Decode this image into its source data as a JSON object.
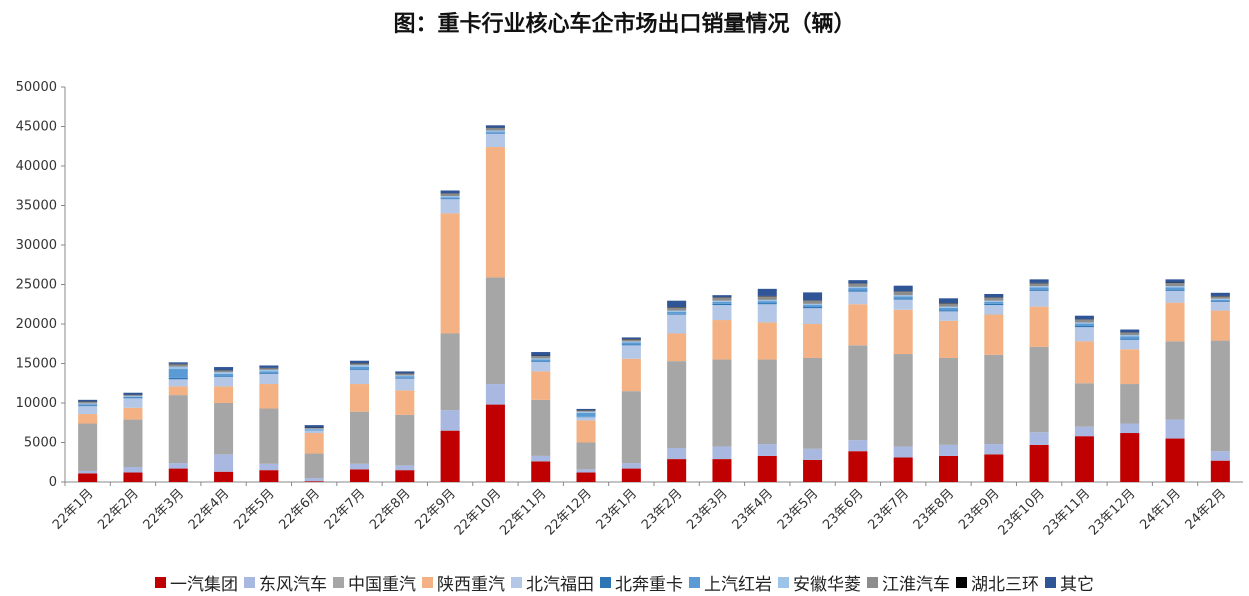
{
  "title": "图：重卡行业核心车企市场出口销量情况（辆）",
  "chart_data": {
    "type": "bar",
    "stacked": true,
    "title": "图：重卡行业核心车企市场出口销量情况（辆）",
    "ylim": [
      0,
      50000
    ],
    "yticks": [
      "0",
      "5000",
      "10000",
      "15000",
      "20000",
      "25000",
      "30000",
      "35000",
      "40000",
      "45000",
      "50000"
    ],
    "categories": [
      "22年1月",
      "22年2月",
      "22年3月",
      "22年4月",
      "22年5月",
      "22年6月",
      "22年7月",
      "22年8月",
      "22年9月",
      "22年10月",
      "22年11月",
      "22年12月",
      "23年1月",
      "23年2月",
      "23年3月",
      "23年4月",
      "23年5月",
      "23年6月",
      "23年7月",
      "23年8月",
      "23年9月",
      "23年10月",
      "23年11月",
      "23年12月",
      "24年1月",
      "24年2月"
    ],
    "legend_position": "bottom",
    "series": [
      {
        "name": "一汽集团",
        "color": "#C00000",
        "values": [
          1100,
          1200,
          1700,
          1300,
          1500,
          100,
          1600,
          1500,
          6500,
          9800,
          2600,
          1200,
          1700,
          2900,
          2900,
          3300,
          2800,
          3900,
          3100,
          3300,
          3500,
          4700,
          5800,
          6200,
          5500,
          2700
        ]
      },
      {
        "name": "东风汽车",
        "color": "#A9B8E0",
        "values": [
          300,
          700,
          700,
          2200,
          800,
          400,
          700,
          600,
          2600,
          2600,
          700,
          400,
          700,
          1400,
          1600,
          1500,
          1400,
          1400,
          1400,
          1400,
          1300,
          1600,
          1200,
          1200,
          2400,
          1200
        ]
      },
      {
        "name": "中国重汽",
        "color": "#A6A6A6",
        "values": [
          6000,
          6000,
          8600,
          6500,
          7000,
          3100,
          6600,
          6400,
          9700,
          13500,
          7100,
          3400,
          9100,
          11000,
          11000,
          10700,
          11500,
          12000,
          11700,
          11000,
          11300,
          10800,
          5500,
          5000,
          9900,
          14000
        ]
      },
      {
        "name": "陕西重汽",
        "color": "#F4B183",
        "values": [
          1200,
          1500,
          1100,
          2100,
          3100,
          2600,
          3500,
          3100,
          15200,
          16500,
          3600,
          2800,
          4100,
          3500,
          5000,
          4700,
          4300,
          5200,
          5600,
          4700,
          5100,
          5100,
          5300,
          4400,
          4900,
          3800
        ]
      },
      {
        "name": "北汽福田",
        "color": "#B4C7E7",
        "values": [
          1000,
          1200,
          900,
          1200,
          1300,
          300,
          1800,
          1500,
          1800,
          1700,
          1200,
          400,
          1700,
          2400,
          1900,
          2300,
          2000,
          1600,
          1300,
          1200,
          1200,
          2000,
          1800,
          1200,
          1500,
          1100
        ]
      },
      {
        "name": "北奔重卡",
        "color": "#2E75B6",
        "values": [
          100,
          100,
          200,
          100,
          100,
          50,
          100,
          100,
          100,
          100,
          100,
          50,
          100,
          100,
          150,
          150,
          150,
          150,
          150,
          150,
          150,
          150,
          150,
          150,
          150,
          100
        ]
      },
      {
        "name": "上汽红岩",
        "color": "#5B9BD5",
        "values": [
          150,
          100,
          1100,
          300,
          200,
          100,
          300,
          200,
          150,
          150,
          200,
          500,
          250,
          250,
          250,
          250,
          250,
          300,
          250,
          300,
          250,
          300,
          300,
          300,
          300,
          150
        ]
      },
      {
        "name": "安徽华菱",
        "color": "#9DC3E6",
        "values": [
          100,
          100,
          300,
          200,
          200,
          100,
          200,
          100,
          150,
          150,
          150,
          150,
          150,
          150,
          150,
          150,
          150,
          150,
          150,
          150,
          150,
          150,
          150,
          150,
          150,
          150
        ]
      },
      {
        "name": "江淮汽车",
        "color": "#8C8C8C",
        "values": [
          200,
          100,
          300,
          200,
          200,
          100,
          200,
          200,
          300,
          300,
          300,
          150,
          250,
          400,
          400,
          450,
          400,
          400,
          450,
          400,
          400,
          350,
          350,
          300,
          400,
          300
        ]
      },
      {
        "name": "湖北三环",
        "color": "#000000",
        "values": [
          50,
          50,
          50,
          50,
          50,
          50,
          50,
          50,
          50,
          50,
          50,
          50,
          50,
          50,
          50,
          50,
          50,
          50,
          50,
          50,
          50,
          50,
          50,
          50,
          50,
          50
        ]
      },
      {
        "name": "其它",
        "color": "#2F5597",
        "values": [
          200,
          250,
          200,
          400,
          300,
          300,
          300,
          250,
          350,
          300,
          450,
          150,
          200,
          800,
          250,
          900,
          1000,
          400,
          700,
          600,
          400,
          450,
          450,
          350,
          400,
          400
        ]
      }
    ]
  }
}
